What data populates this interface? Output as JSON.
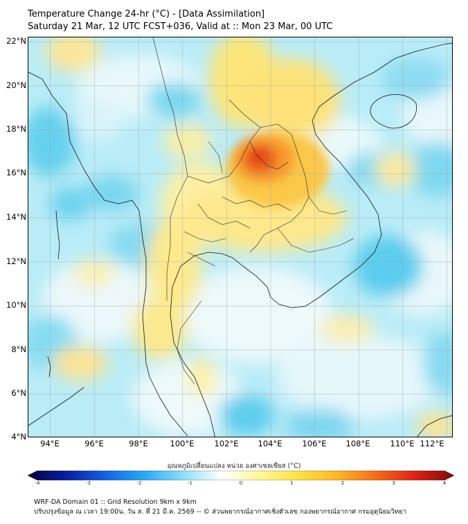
{
  "title": {
    "line1": "Temperature Change 24-hr (°C) - [Data Assimilation]",
    "line2": "Saturday 21 Mar, 12 UTC FCST+036, Valid at :: Mon 23 Mar, 00 UTC"
  },
  "map": {
    "lat_range": [
      4,
      22.2
    ],
    "lon_range": [
      93,
      112.3
    ],
    "lat_ticks": [
      "22°N",
      "20°N",
      "18°N",
      "16°N",
      "14°N",
      "12°N",
      "10°N",
      "8°N",
      "6°N",
      "4°N"
    ],
    "lon_ticks": [
      "94°E",
      "96°E",
      "98°E",
      "100°E",
      "102°E",
      "104°E",
      "106°E",
      "108°E",
      "110°E",
      "112°E"
    ],
    "grid": true,
    "background_color": "#b9ecf7",
    "hotspot": "north-east Thailand, approx 16.5°N 103.5°E"
  },
  "colorbar": {
    "title": "อุณหภูมิเปลี่ยนแปลง หน่วย องศาเซลเซียส (°C)",
    "min": -4,
    "max": 4,
    "tick_labels": [
      "-4",
      "-3",
      "-2",
      "-1",
      "0",
      "1",
      "2",
      "3",
      "4"
    ],
    "colors": [
      "#08003a",
      "#0a1f9e",
      "#1662e0",
      "#2aa8f2",
      "#8fdcf6",
      "#ffffff",
      "#fff59a",
      "#fde14a",
      "#fbb52c",
      "#f26b1d",
      "#d9241a",
      "#7a0a0a"
    ]
  },
  "footer": {
    "line1": "WRF-DA Domain 01 :: Grid Resolution 9km x 9km",
    "line2": "ปรับปรุงข้อมูล ณ เวลา 19:00น. วัน ส. ที่ 21 มี.ค. 2569 -- © ส่วนพยากรณ์อากาศเชิงตัวเลข กองพยากรณ์อากาศ กรมอุตุนิยมวิทยา"
  }
}
